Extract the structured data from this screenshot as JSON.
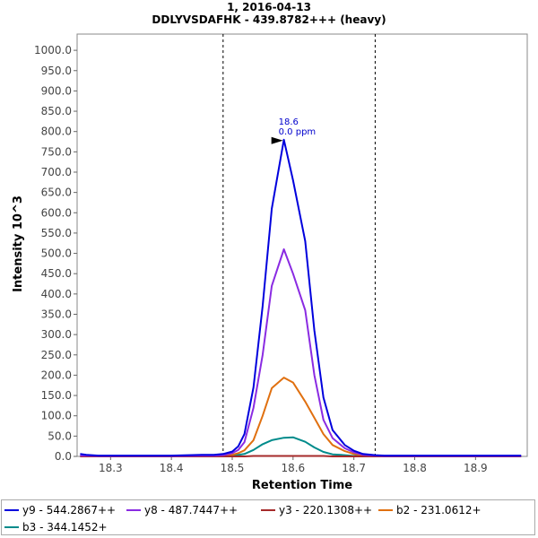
{
  "chart_data": {
    "type": "line",
    "title": "1, 2016-04-13",
    "subtitle": "DDLYVSDAFHK - 439.8782+++ (heavy)",
    "xlabel": "Retention Time",
    "ylabel": "Intensity  10^3",
    "xlim": [
      18.245,
      18.985
    ],
    "ylim": [
      0,
      1040
    ],
    "x_ticks": [
      "18.3",
      "18.4",
      "18.5",
      "18.6",
      "18.7",
      "18.8",
      "18.9"
    ],
    "y_ticks": [
      "0.0",
      "50.0",
      "100.0",
      "150.0",
      "200.0",
      "250.0",
      "300.0",
      "350.0",
      "400.0",
      "450.0",
      "500.0",
      "550.0",
      "600.0",
      "650.0",
      "700.0",
      "750.0",
      "800.0",
      "850.0",
      "900.0",
      "950.0",
      "1000.0"
    ],
    "grid": false,
    "legend_position": "bottom",
    "vertical_markers": [
      18.485,
      18.735
    ],
    "annotation": {
      "x": 18.585,
      "y": 780,
      "line1": "18.6",
      "line2": "0.0 ppm"
    },
    "x": [
      18.25,
      18.26,
      18.28,
      18.3,
      18.35,
      18.4,
      18.45,
      18.47,
      18.485,
      18.5,
      18.51,
      18.52,
      18.535,
      18.55,
      18.565,
      18.585,
      18.6,
      18.62,
      18.635,
      18.65,
      18.665,
      18.685,
      18.7,
      18.715,
      18.735,
      18.75,
      18.8,
      18.85,
      18.9,
      18.975
    ],
    "series": [
      {
        "name": "y9 - 544.2867++",
        "color": "#0000dd",
        "values": [
          6,
          4,
          2,
          2,
          2,
          2,
          4,
          4,
          6,
          12,
          25,
          55,
          170,
          370,
          610,
          780,
          680,
          530,
          310,
          145,
          65,
          28,
          14,
          6,
          3,
          2,
          2,
          2,
          2,
          2
        ]
      },
      {
        "name": "y8 - 487.7447++",
        "color": "#8a2be2",
        "values": [
          2,
          2,
          1,
          1,
          1,
          1,
          2,
          2,
          3,
          8,
          16,
          35,
          120,
          250,
          420,
          510,
          450,
          360,
          200,
          90,
          45,
          20,
          10,
          4,
          2,
          1,
          1,
          1,
          1,
          1
        ]
      },
      {
        "name": "y3 - 220.1308++",
        "color": "#a52a2a",
        "values": [
          0,
          0,
          0,
          0,
          0,
          0,
          0,
          0,
          0,
          0,
          0,
          0,
          1,
          1,
          1,
          1,
          1,
          1,
          1,
          1,
          0,
          0,
          0,
          0,
          0,
          0,
          0,
          0,
          0,
          0
        ]
      },
      {
        "name": "b2 - 231.0612+",
        "color": "#e07010",
        "values": [
          1,
          1,
          1,
          1,
          1,
          1,
          1,
          1,
          2,
          4,
          8,
          15,
          40,
          100,
          168,
          194,
          182,
          135,
          95,
          55,
          28,
          13,
          6,
          3,
          1,
          1,
          1,
          1,
          1,
          1
        ]
      },
      {
        "name": "b3 - 344.1452+",
        "color": "#008b8b",
        "values": [
          0,
          0,
          0,
          0,
          0,
          0,
          0,
          0,
          1,
          2,
          4,
          6,
          16,
          30,
          40,
          46,
          47,
          36,
          22,
          11,
          5,
          3,
          1,
          1,
          0,
          0,
          0,
          0,
          0,
          0
        ]
      }
    ]
  }
}
